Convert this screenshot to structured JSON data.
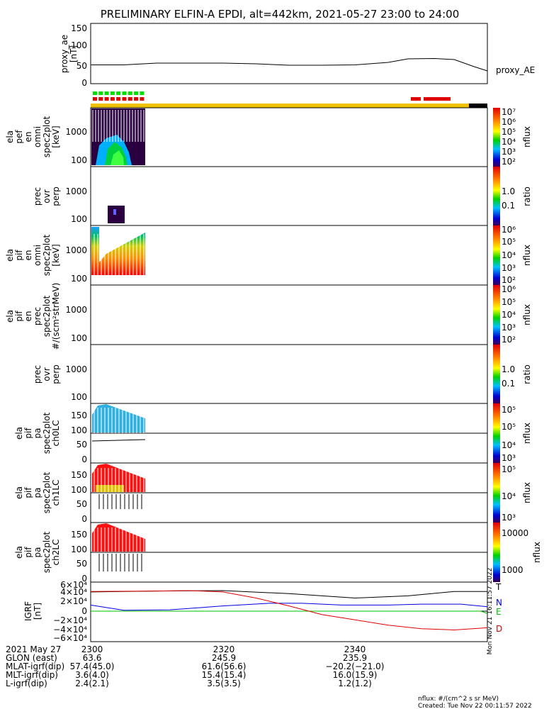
{
  "title": "PRELIMINARY ELFIN-A EPDI, alt=442km, 2021-05-27 23:00 to 24:00",
  "colors": {
    "frame": "#000000",
    "ae_line": "#000000",
    "orange": "#f2c200",
    "red": "#e00000",
    "green": "#00e000",
    "blue": "#0000e0",
    "bx": "#000000"
  },
  "top_bars": {
    "green_segments": 9,
    "red_segments_left": 9,
    "red_segments_right": [
      "1",
      "2"
    ]
  },
  "panels": [
    {
      "labels": [
        "proxy_ae",
        "[nT]"
      ],
      "ticks": [
        "150",
        "100",
        "50",
        "0"
      ],
      "side": "proxy_AE"
    },
    {
      "labels": [
        "ela",
        "pef",
        "en",
        "omni",
        "spec2plot",
        "[keV]"
      ],
      "ticks": [
        "1000",
        "100"
      ],
      "cb_ticks": [
        "10⁷",
        "10⁶",
        "10⁵",
        "10⁴",
        "10³",
        "10²"
      ],
      "cb_unit": "nflux"
    },
    {
      "labels": [
        "prec",
        "ovr",
        "perp"
      ],
      "ticks": [
        "1000",
        "100"
      ],
      "cb_ticks": [
        "1.0",
        "0.1"
      ],
      "cb_unit": "ratio"
    },
    {
      "labels": [
        "ela",
        "pif",
        "en",
        "omni",
        "spec2plot",
        "[keV]"
      ],
      "ticks": [
        "1000",
        "100"
      ],
      "cb_ticks": [
        "10⁶",
        "10⁵",
        "10⁴",
        "10³",
        "10²"
      ],
      "cb_unit": "nflux"
    },
    {
      "labels": [
        "ela",
        "pif",
        "en",
        "prec",
        "spec2plot",
        "#/(scm²strMeV)"
      ],
      "ticks": [
        "1000",
        "100"
      ],
      "cb_ticks": [
        "10⁶",
        "10⁵",
        "10⁴",
        "10³",
        "10²"
      ],
      "cb_unit": "nflux"
    },
    {
      "labels": [
        "prec",
        "ovr",
        "perp"
      ],
      "ticks": [
        "1000",
        "100"
      ],
      "cb_ticks": [
        "1.0",
        "0.1"
      ],
      "cb_unit": "ratio"
    },
    {
      "labels": [
        "ela",
        "pif",
        "pa",
        "spec2plot",
        "ch0LC"
      ],
      "ticks": [
        "150",
        "100",
        "50",
        "0"
      ],
      "cb_ticks": [
        "10⁵",
        "10⁵",
        "10⁴",
        "10³"
      ],
      "cb_unit": "nflux"
    },
    {
      "labels": [
        "ela",
        "pif",
        "pa",
        "spec2plot",
        "ch1LC"
      ],
      "ticks": [
        "150",
        "100",
        "50",
        "0"
      ],
      "cb_ticks": [
        "10⁵",
        "10⁴",
        "10³"
      ],
      "cb_unit": "nflux"
    },
    {
      "labels": [
        "ela",
        "pif",
        "pa",
        "spec2plot",
        "ch2LC"
      ],
      "ticks": [
        "150",
        "100",
        "50",
        "0"
      ],
      "cb_ticks": [
        "10000",
        "1000"
      ],
      "cb_unit": "nflux"
    },
    {
      "labels": [
        "IGRF",
        "[nT]"
      ],
      "ticks": [
        "6×10⁴",
        "4×10⁴",
        "2×10⁴",
        "0",
        "−2×10⁴",
        "−4×10⁴",
        "−6×10⁴"
      ],
      "components": [
        "T",
        "N",
        "E",
        "D"
      ]
    }
  ],
  "footer": {
    "rows": [
      {
        "label": "2021 May 27",
        "values": [
          "2300",
          "2320",
          "2340"
        ]
      },
      {
        "label": "GLON (east)",
        "values": [
          "63.6",
          "245.9",
          "235.9"
        ]
      },
      {
        "label": "MLAT-igrf(dip)",
        "values": [
          "57.4(45.0)",
          "61.6(56.6)",
          "−20.2(−21.0)"
        ]
      },
      {
        "label": "MLT-igrf(dip)",
        "values": [
          "3.6(4.0)",
          "15.4(15.4)",
          "16.0(15.9)"
        ]
      },
      {
        "label": "L-igrf(dip)",
        "values": [
          "2.4(2.1)",
          "3.5(3.5)",
          "1.2(1.2)"
        ]
      }
    ],
    "note1": "nflux: #/(cm^2 s sr MeV)",
    "note2": "Created: Tue Nov 22 00:11:57 2022",
    "vert_stamp": "Mon Nov 21 16:11:57 2022"
  },
  "chart_data": {
    "type": "line",
    "title": "PRELIMINARY ELFIN-A EPDI, alt=442km, 2021-05-27 23:00 to 24:00",
    "x_ticks": [
      "2300",
      "2320",
      "2340"
    ],
    "series": [
      {
        "name": "proxy_AE",
        "x": [
          0,
          5,
          10,
          15,
          20,
          25,
          30,
          35,
          40,
          45,
          48,
          52,
          55,
          58,
          60
        ],
        "values": [
          45,
          45,
          50,
          50,
          50,
          48,
          44,
          44,
          45,
          52,
          62,
          63,
          60,
          40,
          28
        ]
      },
      {
        "name": "T",
        "x": [
          0,
          10,
          20,
          30,
          40,
          48,
          55,
          60
        ],
        "values": [
          44000,
          46000,
          47000,
          40000,
          30000,
          35000,
          45000,
          45000
        ]
      },
      {
        "name": "N",
        "x": [
          0,
          5,
          12,
          20,
          27,
          32,
          38,
          45,
          50,
          56,
          60
        ],
        "values": [
          14000,
          2000,
          3000,
          12000,
          18000,
          18000,
          14000,
          14000,
          16000,
          16000,
          10000
        ]
      },
      {
        "name": "E",
        "x": [
          0,
          20,
          40,
          55,
          59,
          60
        ],
        "values": [
          0,
          0,
          0,
          0,
          0,
          -5000
        ]
      },
      {
        "name": "D",
        "x": [
          0,
          10,
          15,
          20,
          25,
          30,
          35,
          40,
          45,
          50,
          55,
          60
        ],
        "values": [
          45000,
          46000,
          47000,
          44000,
          30000,
          12000,
          -8000,
          -20000,
          -32000,
          -40000,
          -43000,
          -38000
        ]
      }
    ]
  }
}
